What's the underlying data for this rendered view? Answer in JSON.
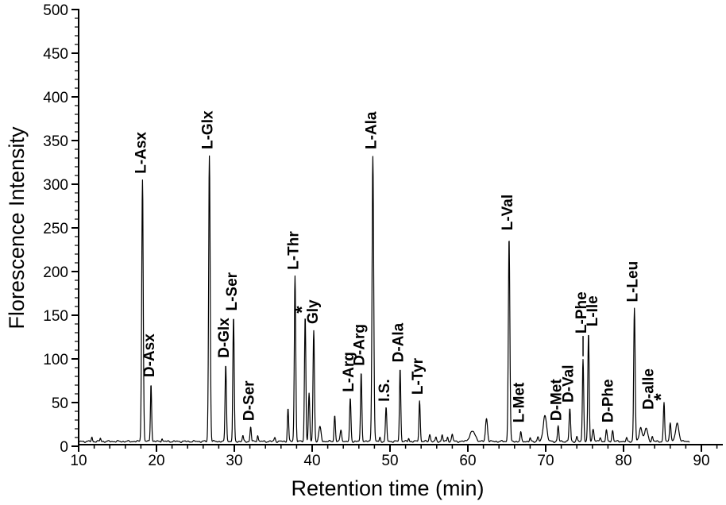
{
  "chart_data": {
    "type": "line",
    "title": "",
    "xlabel": "Retention time (min)",
    "ylabel": "Florescence Intensity",
    "xlim": [
      10,
      92.9
    ],
    "ylim": [
      0,
      500
    ],
    "x_major_ticks": [
      10,
      20,
      30,
      40,
      50,
      60,
      70,
      80,
      90
    ],
    "x_minor_step": 2,
    "y_major_ticks": [
      0,
      50,
      100,
      150,
      200,
      250,
      300,
      350,
      400,
      450,
      500
    ],
    "y_minor_step": 10,
    "grid": false,
    "legend": "none",
    "line_color": "#000000",
    "axis_color": "#000000",
    "background": "#ffffff",
    "baseline_intensity": 5.5,
    "trace_end_t": 88.5,
    "trace_peaks": [
      {
        "t": 11.7,
        "v": 10,
        "s": 0.1
      },
      {
        "t": 12.8,
        "v": 9,
        "s": 0.1
      },
      {
        "t": 18.2,
        "v": 305,
        "s": 0.14
      },
      {
        "t": 19.3,
        "v": 72,
        "s": 0.11
      },
      {
        "t": 20.7,
        "v": 9,
        "s": 0.1
      },
      {
        "t": 26.8,
        "v": 333,
        "s": 0.14
      },
      {
        "t": 28.9,
        "v": 94,
        "s": 0.12
      },
      {
        "t": 29.9,
        "v": 148,
        "s": 0.12
      },
      {
        "t": 31.1,
        "v": 12,
        "s": 0.1
      },
      {
        "t": 32.1,
        "v": 22,
        "s": 0.11
      },
      {
        "t": 33.0,
        "v": 13,
        "s": 0.1
      },
      {
        "t": 35.2,
        "v": 10,
        "s": 0.12
      },
      {
        "t": 36.9,
        "v": 44,
        "s": 0.11
      },
      {
        "t": 37.8,
        "v": 195,
        "s": 0.13
      },
      {
        "t": 39.1,
        "v": 150,
        "s": 0.12
      },
      {
        "t": 39.6,
        "v": 60,
        "s": 0.12
      },
      {
        "t": 40.2,
        "v": 133,
        "s": 0.13
      },
      {
        "t": 41.0,
        "v": 22,
        "s": 0.2
      },
      {
        "t": 42.9,
        "v": 35,
        "s": 0.12
      },
      {
        "t": 43.7,
        "v": 18,
        "s": 0.15
      },
      {
        "t": 44.9,
        "v": 55,
        "s": 0.12
      },
      {
        "t": 46.3,
        "v": 85,
        "s": 0.12
      },
      {
        "t": 47.8,
        "v": 333,
        "s": 0.15
      },
      {
        "t": 48.7,
        "v": 10,
        "s": 0.1
      },
      {
        "t": 49.5,
        "v": 44,
        "s": 0.12
      },
      {
        "t": 51.3,
        "v": 89,
        "s": 0.12
      },
      {
        "t": 52.4,
        "v": 9,
        "s": 0.1
      },
      {
        "t": 53.8,
        "v": 52,
        "s": 0.12
      },
      {
        "t": 55.1,
        "v": 14,
        "s": 0.12
      },
      {
        "t": 55.9,
        "v": 10,
        "s": 0.1
      },
      {
        "t": 56.7,
        "v": 13,
        "s": 0.12
      },
      {
        "t": 57.4,
        "v": 11,
        "s": 0.1
      },
      {
        "t": 58.0,
        "v": 14,
        "s": 0.12
      },
      {
        "t": 60.6,
        "v": 17,
        "s": 0.5
      },
      {
        "t": 62.4,
        "v": 32,
        "s": 0.18
      },
      {
        "t": 65.3,
        "v": 240,
        "s": 0.14
      },
      {
        "t": 66.8,
        "v": 16,
        "s": 0.12
      },
      {
        "t": 68.0,
        "v": 9,
        "s": 0.1
      },
      {
        "t": 69.0,
        "v": 11,
        "s": 0.12
      },
      {
        "t": 69.9,
        "v": 36,
        "s": 0.3
      },
      {
        "t": 71.6,
        "v": 23,
        "s": 0.12
      },
      {
        "t": 73.1,
        "v": 43,
        "s": 0.13
      },
      {
        "t": 74.0,
        "v": 11,
        "s": 0.1
      },
      {
        "t": 74.8,
        "v": 100,
        "s": 0.12
      },
      {
        "t": 75.5,
        "v": 130,
        "s": 0.12
      },
      {
        "t": 76.1,
        "v": 20,
        "s": 0.15
      },
      {
        "t": 77.0,
        "v": 10,
        "s": 0.12
      },
      {
        "t": 77.8,
        "v": 18,
        "s": 0.13
      },
      {
        "t": 78.6,
        "v": 18,
        "s": 0.13
      },
      {
        "t": 80.4,
        "v": 9,
        "s": 0.1
      },
      {
        "t": 81.4,
        "v": 158,
        "s": 0.13
      },
      {
        "t": 82.2,
        "v": 22,
        "s": 0.25
      },
      {
        "t": 82.9,
        "v": 20,
        "s": 0.3
      },
      {
        "t": 83.7,
        "v": 11,
        "s": 0.12
      },
      {
        "t": 85.2,
        "v": 50,
        "s": 0.12
      },
      {
        "t": 86.0,
        "v": 28,
        "s": 0.13
      },
      {
        "t": 86.9,
        "v": 26,
        "s": 0.3
      }
    ],
    "peak_labels": [
      {
        "text": "L-Asx",
        "t": 18.2,
        "peak_v": 305,
        "label_v": 312
      },
      {
        "text": "D-Asx",
        "t": 19.3,
        "peak_v": 72,
        "label_v": 79
      },
      {
        "text": "L-Glx",
        "t": 26.8,
        "peak_v": 333,
        "label_v": 340
      },
      {
        "text": "D-Glx",
        "t": 28.9,
        "peak_v": 94,
        "label_v": 101
      },
      {
        "text": "L-Ser",
        "t": 29.9,
        "peak_v": 148,
        "label_v": 155
      },
      {
        "text": "D-Ser",
        "t": 32.1,
        "peak_v": 22,
        "label_v": 29
      },
      {
        "text": "L-Thr",
        "t": 37.8,
        "peak_v": 195,
        "label_v": 202
      },
      {
        "text": "*",
        "t": 39.1,
        "peak_v": 150,
        "label_v": 152,
        "star": true
      },
      {
        "text": "Gly",
        "t": 40.3,
        "peak_v": 133,
        "label_v": 140
      },
      {
        "text": "L-Arg",
        "t": 44.9,
        "peak_v": 55,
        "label_v": 62
      },
      {
        "text": "D-Arg",
        "t": 46.3,
        "peak_v": 85,
        "label_v": 92
      },
      {
        "text": "L-Ala",
        "t": 47.8,
        "peak_v": 333,
        "label_v": 340
      },
      {
        "text": "I.S.",
        "t": 49.5,
        "peak_v": 44,
        "label_v": 51
      },
      {
        "text": "D-Ala",
        "t": 51.3,
        "peak_v": 89,
        "label_v": 96
      },
      {
        "text": "L-Tyr",
        "t": 53.8,
        "peak_v": 52,
        "label_v": 59
      },
      {
        "text": "L-Val",
        "t": 65.3,
        "peak_v": 240,
        "label_v": 247
      },
      {
        "text": "L-Met",
        "t": 66.8,
        "peak_v": 16,
        "label_v": 27
      },
      {
        "text": "D-Met",
        "t": 71.6,
        "peak_v": 23,
        "label_v": 29
      },
      {
        "text": "D-Val",
        "t": 73.1,
        "peak_v": 43,
        "label_v": 50
      },
      {
        "text": "L-Phe",
        "t": 74.8,
        "peak_v": 100,
        "label_v": 129,
        "leader_to": 103
      },
      {
        "text": "L-Ile",
        "t": 75.5,
        "peak_v": 130,
        "label_v": 137,
        "dx": 7
      },
      {
        "text": "D-Phe",
        "t": 78.2,
        "peak_v": 18,
        "label_v": 27
      },
      {
        "text": "L-Leu",
        "t": 81.4,
        "peak_v": 158,
        "label_v": 165
      },
      {
        "text": "D-alle",
        "t": 82.9,
        "peak_v": 20,
        "label_v": 42,
        "dx": 5
      },
      {
        "text": "*",
        "t": 85.2,
        "peak_v": 50,
        "label_v": 52,
        "star": true
      }
    ]
  }
}
